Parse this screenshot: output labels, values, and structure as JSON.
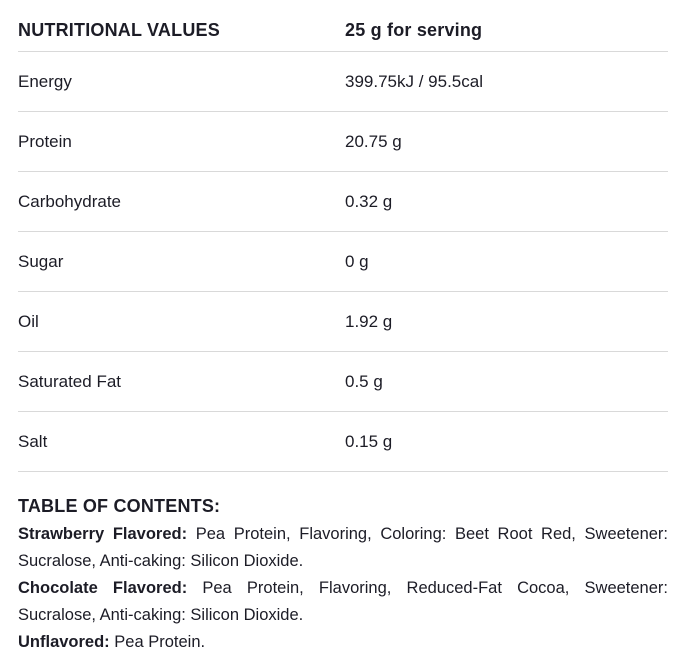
{
  "colors": {
    "text": "#1c1c26",
    "divider": "#d9d9d9",
    "background": "#ffffff"
  },
  "nutrition_table": {
    "header": {
      "label": "NUTRITIONAL VALUES",
      "value": "25 g for serving"
    },
    "rows": [
      {
        "label": "Energy",
        "value": "399.75kJ / 95.5cal"
      },
      {
        "label": "Protein",
        "value": "20.75 g"
      },
      {
        "label": "Carbohydrate",
        "value": "0.32 g"
      },
      {
        "label": "Sugar",
        "value": "0 g"
      },
      {
        "label": "Oil",
        "value": "1.92 g"
      },
      {
        "label": "Saturated Fat",
        "value": "0.5 g"
      },
      {
        "label": "Salt",
        "value": "0.15 g"
      }
    ]
  },
  "contents": {
    "heading": "TABLE OF CONTENTS:",
    "entries": [
      {
        "name": "Strawberry Flavored:",
        "text": "Pea Protein, Flavoring, Coloring: Beet Root Red, Sweetener: Sucralose, Anti-caking: Silicon Dioxide."
      },
      {
        "name": "Chocolate Flavored:",
        "text": "Pea Protein, Flavoring, Reduced-Fat Cocoa, Sweetener: Sucralose, Anti-caking: Silicon Dioxide."
      },
      {
        "name": "Unflavored:",
        "text": "Pea Protein."
      }
    ]
  }
}
